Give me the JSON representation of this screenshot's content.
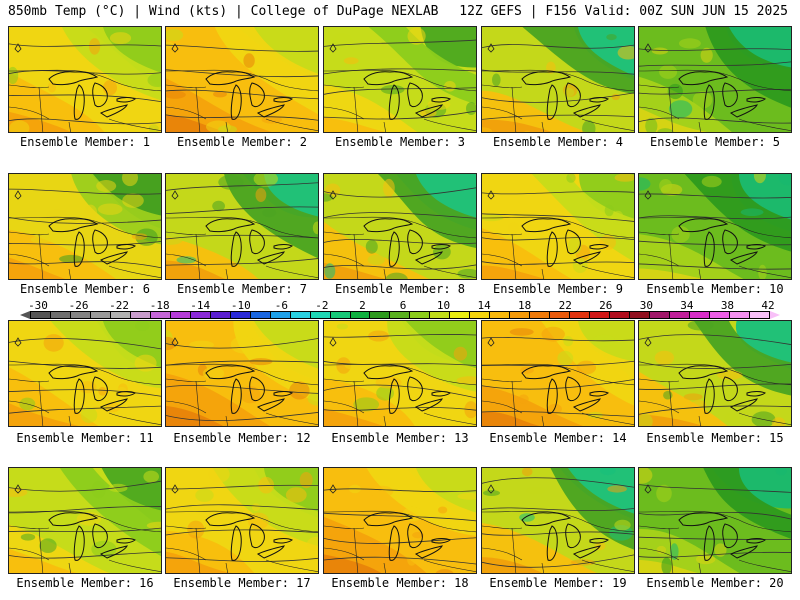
{
  "header": {
    "left": "850mb Temp (°C) | Wind (kts) | College of DuPage NEXLAB",
    "right": "12Z GEFS | F156 Valid: 00Z SUN JUN 15 2025"
  },
  "colorbar": {
    "labels": [
      "-30",
      "-26",
      "-22",
      "-18",
      "-14",
      "-10",
      "-6",
      "-2",
      "2",
      "6",
      "10",
      "14",
      "18",
      "22",
      "26",
      "30",
      "34",
      "38",
      "42"
    ],
    "colors": [
      "#565656",
      "#6e6e6e",
      "#848484",
      "#9a9a9a",
      "#b0b0b0",
      "#c89ccc",
      "#c566d8",
      "#b43cd8",
      "#8a2ad8",
      "#5a1fd0",
      "#2a2ad8",
      "#1a66e0",
      "#1ea0e8",
      "#2ad0e0",
      "#20d6b4",
      "#18c878",
      "#10b040",
      "#2e9a1e",
      "#5ab020",
      "#8ccc1c",
      "#c0dc1a",
      "#e8ec12",
      "#f4d40e",
      "#f8b80c",
      "#f49a0a",
      "#ee7a0a",
      "#e85a0c",
      "#e03410",
      "#d01818",
      "#b00e1e",
      "#901020",
      "#a0186a",
      "#c0209a",
      "#d82ec8",
      "#ec5ee6",
      "#f490f0",
      "#f8c0f8"
    ]
  },
  "panels": [
    {
      "label": "Ensemble Member: 1",
      "theme": "warm"
    },
    {
      "label": "Ensemble Member: 2",
      "theme": "hot"
    },
    {
      "label": "Ensemble Member: 3",
      "theme": "mild"
    },
    {
      "label": "Ensemble Member: 4",
      "theme": "warmcool"
    },
    {
      "label": "Ensemble Member: 5",
      "theme": "cool"
    },
    {
      "label": "Ensemble Member: 6",
      "theme": "warmwest"
    },
    {
      "label": "Ensemble Member: 7",
      "theme": "warmcool"
    },
    {
      "label": "Ensemble Member: 8",
      "theme": "warmcool"
    },
    {
      "label": "Ensemble Member: 9",
      "theme": "warm"
    },
    {
      "label": "Ensemble Member: 10",
      "theme": "cool"
    },
    {
      "label": "Ensemble Member: 11",
      "theme": "warm"
    },
    {
      "label": "Ensemble Member: 12",
      "theme": "hot"
    },
    {
      "label": "Ensemble Member: 13",
      "theme": "warm"
    },
    {
      "label": "Ensemble Member: 14",
      "theme": "hot"
    },
    {
      "label": "Ensemble Member: 15",
      "theme": "warmcool"
    },
    {
      "label": "Ensemble Member: 16",
      "theme": "mild"
    },
    {
      "label": "Ensemble Member: 17",
      "theme": "warm"
    },
    {
      "label": "Ensemble Member: 18",
      "theme": "hot"
    },
    {
      "label": "Ensemble Member: 19",
      "theme": "warmcool"
    },
    {
      "label": "Ensemble Member: 20",
      "theme": "cool"
    }
  ],
  "palette": {
    "hot": [
      "#e8840a",
      "#f4a20c",
      "#f8be0e",
      "#f0d612",
      "#c6dc1a"
    ],
    "warm": [
      "#f4a20c",
      "#f8be0e",
      "#f0d612",
      "#c6dc1a",
      "#8ccc1c"
    ],
    "mild": [
      "#f8be0e",
      "#f0d612",
      "#c6dc1a",
      "#8ccc1c",
      "#4ca820"
    ],
    "warmwest": [
      "#f4a20c",
      "#f8be0e",
      "#e8d614",
      "#9ccf1c",
      "#3e9e20"
    ],
    "warmcool": [
      "#f0a00c",
      "#f8c00e",
      "#c4d81a",
      "#4aa422",
      "#18c07c"
    ],
    "cool": [
      "#d8d414",
      "#a8d21a",
      "#6cbc1e",
      "#2e9a1e",
      "#18b870"
    ]
  }
}
